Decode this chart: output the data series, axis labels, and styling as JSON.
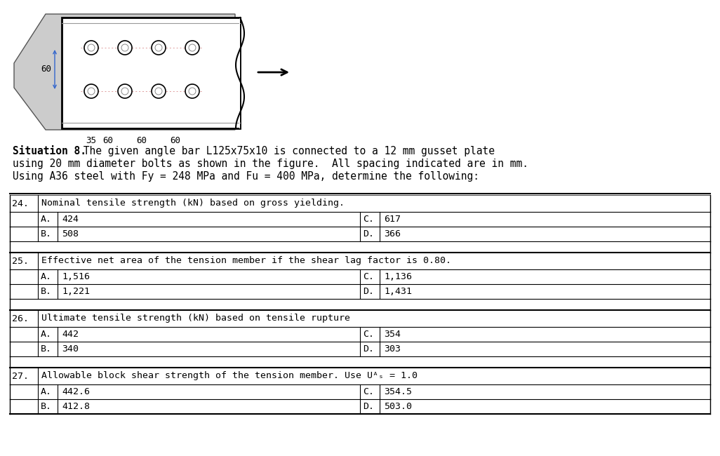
{
  "bg_color": "#ffffff",
  "figure_width": 10.26,
  "figure_height": 6.5,
  "text_color": "#000000",
  "mono_font": "DejaVu Sans Mono",
  "situation_bold": "Situation 8.",
  "situation_rest": " The given angle bar L125x75x10 is connected to a 12 mm gusset plate",
  "situation_line2": "using 20 mm diameter bolts as shown in the figure.  All spacing indicated are in mm.",
  "situation_line3": "Using A36 steel with Fy = 248 MPa and Fu = 400 MPa, determine the following:",
  "questions": [
    {
      "num": "24.",
      "question": "Nominal tensile strength (kN) based on gross yielding.",
      "A": "424",
      "B": "508",
      "C": "617",
      "D": "366"
    },
    {
      "num": "25.",
      "question": "Effective net area of the tension member if the shear lag factor is 0.80.",
      "A": "1,516",
      "B": "1,221",
      "C": "1,136",
      "D": "1,431"
    },
    {
      "num": "26.",
      "question": "Ultimate tensile strength (kN) based on tensile rupture",
      "A": "442",
      "B": "340",
      "C": "354",
      "D": "303"
    },
    {
      "num": "27.",
      "question": "Allowable block shear strength of the tension member. Use Uᴬₛ = 1.0",
      "A": "442.6",
      "B": "412.8",
      "C": "354.5",
      "D": "503.0"
    }
  ]
}
